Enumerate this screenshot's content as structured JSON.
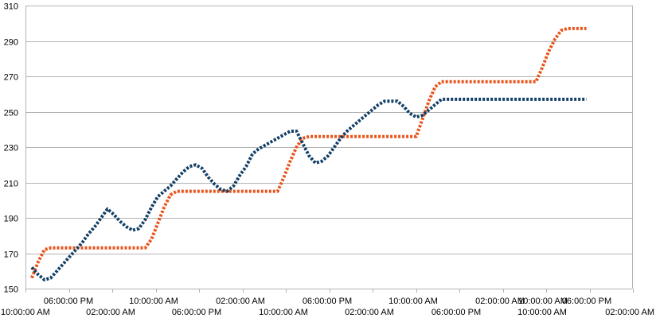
{
  "chart_data": {
    "type": "line",
    "title": "",
    "xlabel": "",
    "ylabel": "",
    "ylim": [
      150,
      310
    ],
    "yticks": [
      150,
      170,
      190,
      210,
      230,
      250,
      270,
      290,
      310
    ],
    "grid": true,
    "legend": "none",
    "x_tick_labels_row1": [
      "06:00:00 PM",
      "10:00:00 AM",
      "02:00:00 AM",
      "06:00:00 PM",
      "10:00:00 AM",
      "02:00:00 AM",
      "10:00:00 AM",
      "06:00:00 PM"
    ],
    "x_tick_labels_row2": [
      "10:00:00 AM",
      "02:00:00 AM",
      "06:00:00 PM",
      "10:00:00 AM",
      "02:00:00 AM",
      "06:00:00 PM",
      "10:00:00 AM",
      "02:00:00 AM"
    ],
    "x": [
      0,
      8,
      16,
      24,
      32,
      40,
      48,
      56,
      64,
      72,
      80,
      88,
      96,
      104,
      112,
      120,
      128,
      136,
      144,
      152,
      160,
      168,
      176,
      184,
      192,
      200,
      208,
      216,
      224,
      232,
      240,
      248,
      256,
      264,
      272,
      280,
      288,
      296,
      304,
      312,
      320,
      328,
      336,
      344,
      352,
      360,
      368,
      376,
      384,
      392,
      400,
      408,
      416,
      424,
      432,
      440,
      448,
      456,
      464,
      472,
      480,
      488,
      496,
      504,
      512,
      520,
      528,
      536,
      544,
      552,
      560,
      568,
      576,
      584,
      592,
      600,
      608,
      616,
      624,
      632,
      640,
      648,
      656,
      664,
      672,
      680,
      688,
      696,
      704
    ],
    "series": [
      {
        "color": "#e8541c",
        "style": "dotted",
        "values": [
          156,
          165,
          172,
          173,
          173,
          173,
          173,
          173,
          173,
          173,
          173,
          173,
          173,
          173,
          173,
          173,
          173,
          173,
          173,
          178,
          187,
          196,
          203,
          205,
          205,
          205,
          205,
          205,
          205,
          205,
          205,
          205,
          205,
          205,
          205,
          205,
          205,
          205,
          205,
          205,
          213,
          222,
          230,
          235,
          236,
          236,
          236,
          236,
          236,
          236,
          236,
          236,
          236,
          236,
          236,
          236,
          236,
          236,
          236,
          236,
          236,
          236,
          246,
          256,
          264,
          267,
          267,
          267,
          267,
          267,
          267,
          267,
          267,
          267,
          267,
          267,
          267,
          267,
          267,
          267,
          267,
          275,
          284,
          291,
          296,
          297,
          297,
          297,
          297
        ]
      },
      {
        "color": "#123f66",
        "style": "dotted",
        "values": [
          162,
          158,
          155,
          156,
          160,
          164,
          168,
          172,
          176,
          181,
          185,
          190,
          195,
          192,
          188,
          185,
          183,
          184,
          189,
          196,
          202,
          205,
          208,
          212,
          216,
          219,
          220,
          218,
          213,
          209,
          206,
          205,
          208,
          214,
          219,
          226,
          229,
          231,
          233,
          235,
          237,
          239,
          239,
          232,
          225,
          221,
          222,
          225,
          230,
          235,
          239,
          242,
          245,
          248,
          251,
          254,
          256,
          256,
          256,
          253,
          249,
          247,
          248,
          251,
          254,
          257,
          257,
          257,
          257,
          257,
          257,
          257,
          257,
          257,
          257,
          257,
          257,
          257,
          257,
          257,
          257,
          257,
          257,
          257,
          257,
          257,
          257,
          257,
          257
        ]
      }
    ]
  }
}
